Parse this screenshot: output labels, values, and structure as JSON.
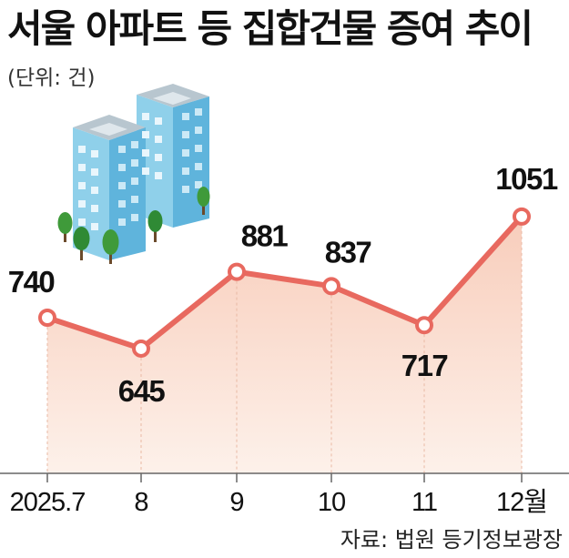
{
  "chart_data": {
    "type": "line",
    "title": "서울 아파트 등 집합건물 증여 추이",
    "unit_label": "(단위: 건)",
    "categories": [
      "2025.7",
      "8",
      "9",
      "10",
      "11",
      "12월"
    ],
    "values": [
      740,
      645,
      881,
      837,
      717,
      1051
    ],
    "data_labels": [
      "740",
      "645",
      "881",
      "837",
      "717",
      "1051"
    ],
    "source": "자료: 법원 등기정보광장",
    "colors": {
      "line": "#e8695f",
      "area_top": "#f8cdbb",
      "area_bottom": "#fdf1ea",
      "marker_fill": "#ffffff",
      "axis": "#666666"
    }
  }
}
